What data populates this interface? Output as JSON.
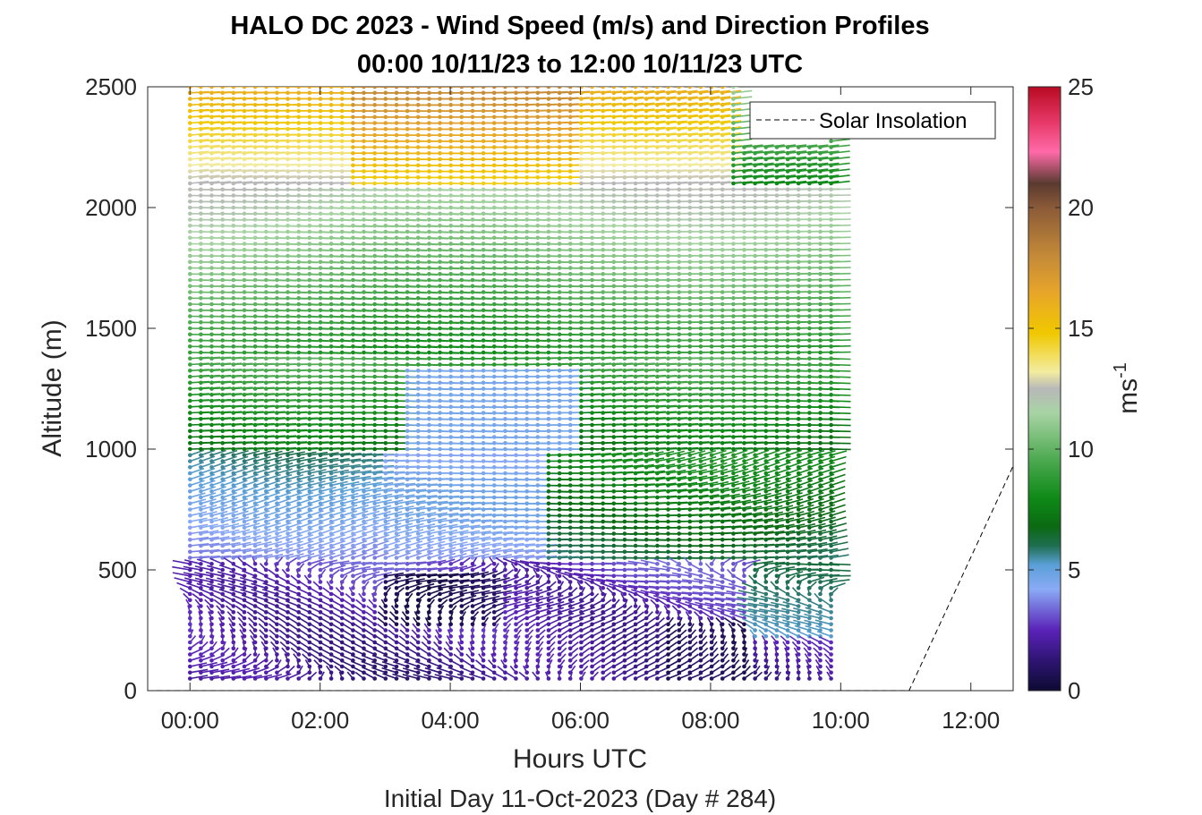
{
  "chart_data": {
    "type": "wind-barb-profile",
    "title": "HALO DC 2023 - Wind Speed (m/s) and Direction Profiles",
    "subtitle": "00:00 10/11/23 to 12:00 10/11/23  UTC",
    "xlabel": "Hours UTC",
    "xlabel_sub": "Initial Day 11-Oct-2023 (Day # 284)",
    "ylabel": "Altitude (m)",
    "xlim": [
      -0.65,
      12.65
    ],
    "ylim": [
      0,
      2500
    ],
    "x_ticks": [
      0,
      2,
      4,
      6,
      8,
      10,
      12
    ],
    "x_tick_labels": [
      "00:00",
      "02:00",
      "04:00",
      "06:00",
      "08:00",
      "10:00",
      "12:00"
    ],
    "y_ticks": [
      0,
      500,
      1000,
      1500,
      2000,
      2500
    ],
    "y_tick_labels": [
      "0",
      "500",
      "1000",
      "1500",
      "2000",
      "2500"
    ],
    "colorbar": {
      "label_base": "ms",
      "label_exp": "-1",
      "range": [
        0,
        25
      ],
      "ticks": [
        0,
        5,
        10,
        15,
        20,
        25
      ],
      "tick_labels": [
        "0",
        "5",
        "10",
        "15",
        "20",
        "25"
      ],
      "stops": [
        [
          0,
          "#0d0b33"
        ],
        [
          1.2,
          "#2d1470"
        ],
        [
          2.5,
          "#5a22b8"
        ],
        [
          4.2,
          "#8aaaf5"
        ],
        [
          5.2,
          "#5ba0d8"
        ],
        [
          6.0,
          "#1e6e50"
        ],
        [
          6.8,
          "#0b6a12"
        ],
        [
          8.0,
          "#0f8a18"
        ],
        [
          9.5,
          "#4aa84e"
        ],
        [
          11.5,
          "#a8d4a4"
        ],
        [
          12.5,
          "#b8b8b8"
        ],
        [
          13.2,
          "#f3eca0"
        ],
        [
          14.8,
          "#f0c800"
        ],
        [
          16.5,
          "#e7a52a"
        ],
        [
          18.0,
          "#c48a38"
        ],
        [
          20.0,
          "#8b5a38"
        ],
        [
          21.0,
          "#5a3a30"
        ],
        [
          22.3,
          "#ff6aa8"
        ],
        [
          23.5,
          "#e83a6a"
        ],
        [
          25,
          "#b80a22"
        ]
      ]
    },
    "legend": {
      "label": "Solar Insolation",
      "placement": "top-right",
      "style": "dashed"
    },
    "solar_insolation": {
      "x": [
        -0.65,
        11.05,
        12.65
      ],
      "y": [
        0,
        0,
        930
      ]
    },
    "profiles": {
      "time_range_hours": [
        0,
        9.9
      ],
      "profile_interval_hours": 0.167,
      "altitude_range_m": [
        50,
        2500
      ],
      "altitude_interval_m": 25
    }
  }
}
